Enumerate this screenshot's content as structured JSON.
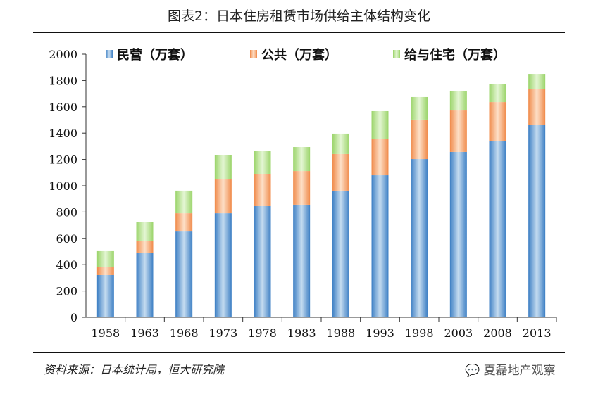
{
  "title": "图表2：日本住房租赁市场供给主体结构变化",
  "source": "资料来源：日本统计局，恒大研究院",
  "watermark": "夏磊地产观察",
  "colors": {
    "private": "#5b9bd5",
    "public": "#f4a460",
    "subsidized": "#b6e48a"
  },
  "chart_data": {
    "type": "bar",
    "stacked": true,
    "title": "图表2：日本住房租赁市场供给主体结构变化",
    "categories": [
      "1958",
      "1963",
      "1968",
      "1973",
      "1978",
      "1983",
      "1988",
      "1993",
      "1998",
      "2003",
      "2008",
      "2013"
    ],
    "series": [
      {
        "name": "民营（万套）",
        "values": [
          321,
          492,
          652,
          791,
          845,
          856,
          963,
          1080,
          1203,
          1257,
          1337,
          1460
        ]
      },
      {
        "name": "公共（万套）",
        "values": [
          64,
          91,
          139,
          257,
          246,
          256,
          278,
          278,
          300,
          315,
          299,
          278
        ]
      },
      {
        "name": "给与住宅（万套）",
        "values": [
          118,
          144,
          172,
          182,
          176,
          182,
          155,
          209,
          171,
          150,
          139,
          112
        ]
      }
    ],
    "ylim": [
      0,
      2000
    ],
    "yticks": [
      0,
      200,
      400,
      600,
      800,
      1000,
      1200,
      1400,
      1600,
      1800,
      2000
    ],
    "grid": false,
    "legend": "top",
    "xlabel": "",
    "ylabel": ""
  }
}
